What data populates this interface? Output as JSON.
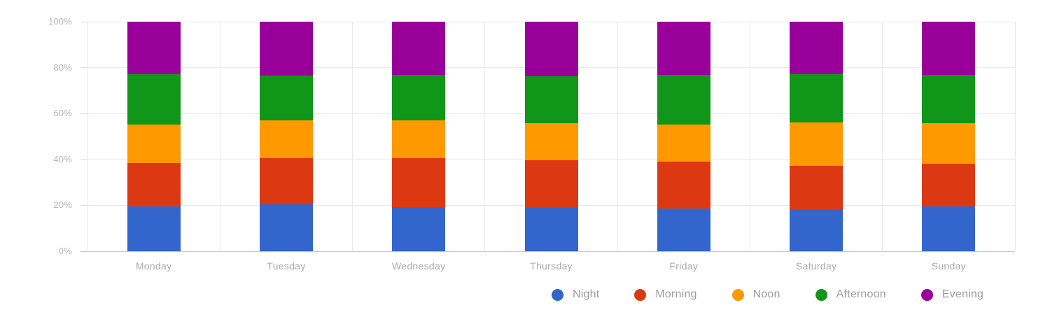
{
  "chart_data": {
    "type": "bar",
    "variant": "stacked-100-percent",
    "title": "",
    "xlabel": "",
    "ylabel": "",
    "ylim": [
      0,
      100
    ],
    "grid": true,
    "y_ticks": [
      "0%",
      "20%",
      "40%",
      "60%",
      "80%",
      "100%"
    ],
    "categories": [
      "Monday",
      "Tuesday",
      "Wednesday",
      "Thursday",
      "Friday",
      "Saturday",
      "Sunday"
    ],
    "series": [
      {
        "name": "Night",
        "color": "#3366cc",
        "values": [
          19.6,
          20.3,
          19.3,
          18.9,
          18.6,
          18.2,
          19.6
        ]
      },
      {
        "name": "Morning",
        "color": "#dc3912",
        "values": [
          18.7,
          20.2,
          21.2,
          20.8,
          20.5,
          19.1,
          18.4
        ]
      },
      {
        "name": "Noon",
        "color": "#ff9900",
        "values": [
          17.0,
          16.6,
          16.4,
          16.1,
          16.2,
          18.9,
          17.7
        ]
      },
      {
        "name": "Afternoon",
        "color": "#109618",
        "values": [
          21.8,
          19.3,
          20.0,
          20.5,
          21.4,
          21.0,
          21.2
        ]
      },
      {
        "name": "Evening",
        "color": "#990099",
        "values": [
          22.9,
          23.6,
          23.1,
          23.7,
          23.3,
          22.8,
          23.1
        ]
      }
    ],
    "legend": {
      "position": "bottom-right",
      "items": [
        "Night",
        "Morning",
        "Noon",
        "Afternoon",
        "Evening"
      ]
    }
  }
}
